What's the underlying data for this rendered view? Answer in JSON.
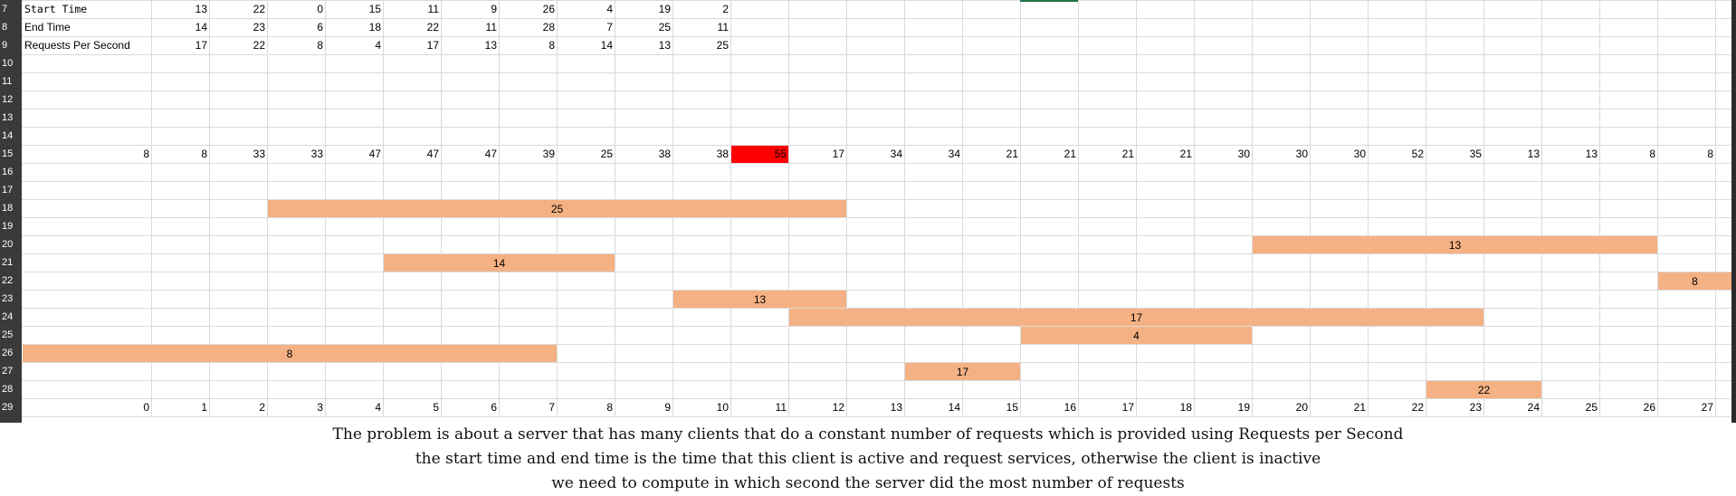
{
  "sheet": {
    "rows": [
      "7",
      "8",
      "9",
      "10",
      "11",
      "12",
      "13",
      "14",
      "15",
      "16",
      "17",
      "18",
      "19",
      "20",
      "21",
      "22",
      "23",
      "24",
      "25",
      "26",
      "27",
      "28",
      "29"
    ],
    "labels": {
      "start_time": "Start Time",
      "end_time": "End Time",
      "rps": "Requests Per Second"
    },
    "start_time": [
      13,
      22,
      0,
      15,
      11,
      9,
      26,
      4,
      19,
      2
    ],
    "end_time": [
      14,
      23,
      6,
      18,
      22,
      11,
      28,
      7,
      25,
      11
    ],
    "rps": [
      17,
      22,
      8,
      4,
      17,
      13,
      8,
      14,
      13,
      25
    ],
    "row15": [
      8,
      8,
      33,
      33,
      47,
      47,
      47,
      39,
      25,
      38,
      38,
      55,
      17,
      34,
      34,
      21,
      21,
      21,
      21,
      30,
      30,
      30,
      52,
      35,
      13,
      13,
      8,
      8
    ],
    "highlight_index": 11,
    "highlight_color": "#ff0000",
    "bar_color": "#f4b183",
    "axis": [
      0,
      1,
      2,
      3,
      4,
      5,
      6,
      7,
      8,
      9,
      10,
      11,
      12,
      13,
      14,
      15,
      16,
      17,
      18,
      19,
      20,
      21,
      22,
      23,
      24,
      25,
      26,
      27
    ],
    "bars": [
      {
        "row": "18",
        "value": "25"
      },
      {
        "row": "20",
        "value": "13"
      },
      {
        "row": "21",
        "value": "14"
      },
      {
        "row": "22",
        "value": "8"
      },
      {
        "row": "23",
        "value": "13"
      },
      {
        "row": "24",
        "value": "17"
      },
      {
        "row": "25",
        "value": "4"
      },
      {
        "row": "26",
        "value": "8"
      },
      {
        "row": "27",
        "value": "17"
      },
      {
        "row": "28",
        "value": "22"
      }
    ]
  },
  "description": {
    "line1": "The problem is about a server that has many clients that do a constant number of requests which is provided using Requests per Second",
    "line2": "the start time and end time is the time that this client is active and request services, otherwise the client is inactive",
    "line3": "we need to compute in which second the server did the most number of requests"
  }
}
